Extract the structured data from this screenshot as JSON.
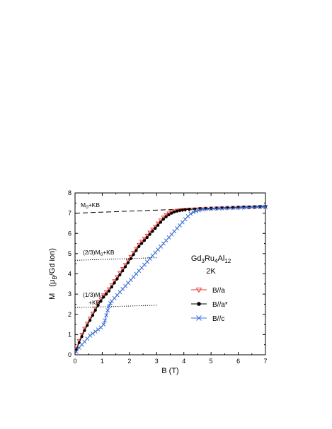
{
  "chart_data": {
    "type": "line",
    "xlabel": "B (T)",
    "ylabel_prefix": "M",
    "ylabel_unit_text": "B",
    "ylabel_suffix": "/Gd ion)",
    "xlim": [
      0,
      7
    ],
    "ylim": [
      0,
      8
    ],
    "xticks": [
      "0",
      "1",
      "2",
      "3",
      "4",
      "5",
      "6",
      "7"
    ],
    "yticks": [
      "0",
      "1",
      "2",
      "3",
      "4",
      "5",
      "6",
      "7",
      "8"
    ],
    "grid": false,
    "legend_position": "right-middle",
    "compound": {
      "Gd": "Gd",
      "n1": "3",
      "Ru": "Ru",
      "n2": "4",
      "Al": "Al",
      "n3": "12"
    },
    "temperature": "2K",
    "annotations": {
      "m0_main": "M",
      "m0_sub": "0",
      "m0_rest": "+KB",
      "two_thirds_pre": "(2/3)M",
      "two_thirds_sub": "0",
      "two_thirds_rest": "+KB",
      "one_third_pre": "(1/3)M",
      "one_third_sub": "0",
      "one_third_line2": "+KB"
    },
    "reference_lines": [
      {
        "style": "dashed",
        "x": [
          0,
          7
        ],
        "y": [
          7.0,
          7.35
        ]
      },
      {
        "style": "dotted",
        "x": [
          0,
          3
        ],
        "y": [
          4.67,
          4.8
        ]
      },
      {
        "style": "dotted",
        "x": [
          0,
          3
        ],
        "y": [
          2.33,
          2.45
        ]
      }
    ],
    "series": [
      {
        "name": "B//a",
        "color": "#e8352f",
        "marker": "triangle-down-open",
        "x": [
          0.05,
          0.15,
          0.25,
          0.35,
          0.45,
          0.55,
          0.65,
          0.75,
          0.85,
          0.95,
          1.05,
          1.15,
          1.25,
          1.35,
          1.45,
          1.55,
          1.65,
          1.75,
          1.85,
          1.95,
          2.05,
          2.15,
          2.25,
          2.35,
          2.45,
          2.55,
          2.65,
          2.75,
          2.85,
          2.95,
          3.05,
          3.15,
          3.25,
          3.35,
          3.45,
          3.55,
          3.65,
          3.75,
          3.85,
          3.95,
          4.05,
          4.2,
          4.4,
          4.6,
          4.8,
          5.0,
          5.2,
          5.4,
          5.6,
          5.8,
          6.0,
          6.2,
          6.4,
          6.6,
          6.8,
          7.0
        ],
        "y": [
          0.3,
          0.7,
          1.0,
          1.3,
          1.55,
          1.8,
          2.05,
          2.3,
          2.55,
          2.75,
          2.95,
          3.1,
          3.25,
          3.45,
          3.65,
          3.85,
          4.05,
          4.25,
          4.45,
          4.65,
          4.85,
          5.05,
          5.25,
          5.45,
          5.6,
          5.75,
          5.9,
          6.05,
          6.2,
          6.35,
          6.5,
          6.65,
          6.8,
          6.92,
          7.0,
          7.06,
          7.1,
          7.13,
          7.15,
          7.17,
          7.18,
          7.19,
          7.2,
          7.22,
          7.23,
          7.24,
          7.25,
          7.26,
          7.27,
          7.28,
          7.29,
          7.3,
          7.3,
          7.31,
          7.32,
          7.32
        ]
      },
      {
        "name": "B//a*",
        "color": "#000000",
        "marker": "circle-filled",
        "x": [
          0.05,
          0.15,
          0.25,
          0.35,
          0.45,
          0.55,
          0.65,
          0.75,
          0.85,
          0.95,
          1.05,
          1.15,
          1.25,
          1.35,
          1.45,
          1.55,
          1.65,
          1.75,
          1.85,
          1.95,
          2.05,
          2.15,
          2.25,
          2.35,
          2.45,
          2.55,
          2.65,
          2.75,
          2.85,
          2.95,
          3.05,
          3.15,
          3.25,
          3.35,
          3.45,
          3.55,
          3.65,
          3.75,
          3.85,
          3.95,
          4.05,
          4.2,
          4.4,
          4.6,
          4.8,
          5.0,
          5.2,
          5.4,
          5.6,
          5.8,
          6.0,
          6.2,
          6.4,
          6.6,
          6.8,
          7.0
        ],
        "y": [
          0.25,
          0.6,
          0.9,
          1.2,
          1.45,
          1.7,
          1.95,
          2.2,
          2.45,
          2.65,
          2.85,
          3.0,
          3.15,
          3.35,
          3.55,
          3.75,
          3.95,
          4.15,
          4.35,
          4.55,
          4.75,
          4.95,
          5.15,
          5.35,
          5.5,
          5.65,
          5.8,
          5.95,
          6.1,
          6.25,
          6.4,
          6.55,
          6.7,
          6.82,
          6.92,
          7.0,
          7.06,
          7.1,
          7.13,
          7.15,
          7.17,
          7.19,
          7.2,
          7.22,
          7.23,
          7.24,
          7.25,
          7.26,
          7.27,
          7.28,
          7.29,
          7.3,
          7.3,
          7.31,
          7.32,
          7.32
        ]
      },
      {
        "name": "B//c",
        "color": "#3a6fd8",
        "marker": "x",
        "x": [
          0.05,
          0.15,
          0.25,
          0.35,
          0.45,
          0.55,
          0.65,
          0.75,
          0.85,
          0.95,
          1.05,
          1.1,
          1.15,
          1.2,
          1.25,
          1.3,
          1.35,
          1.45,
          1.55,
          1.65,
          1.75,
          1.85,
          1.95,
          2.05,
          2.15,
          2.25,
          2.35,
          2.45,
          2.55,
          2.65,
          2.75,
          2.85,
          2.95,
          3.05,
          3.15,
          3.25,
          3.35,
          3.45,
          3.55,
          3.65,
          3.75,
          3.85,
          3.95,
          4.05,
          4.15,
          4.25,
          4.35,
          4.45,
          4.55,
          4.7,
          4.9,
          5.1,
          5.3,
          5.5,
          5.7,
          5.9,
          6.1,
          6.3,
          6.5,
          6.7,
          6.9,
          7.0
        ],
        "y": [
          0.15,
          0.35,
          0.5,
          0.65,
          0.8,
          0.95,
          1.05,
          1.15,
          1.25,
          1.35,
          1.5,
          1.7,
          1.95,
          2.2,
          2.4,
          2.55,
          2.65,
          2.8,
          2.95,
          3.1,
          3.25,
          3.4,
          3.55,
          3.7,
          3.85,
          4.0,
          4.15,
          4.3,
          4.45,
          4.6,
          4.75,
          4.9,
          5.05,
          5.2,
          5.35,
          5.5,
          5.65,
          5.8,
          5.95,
          6.1,
          6.25,
          6.4,
          6.55,
          6.7,
          6.85,
          6.97,
          7.05,
          7.1,
          7.14,
          7.18,
          7.2,
          7.22,
          7.23,
          7.24,
          7.25,
          7.26,
          7.27,
          7.28,
          7.29,
          7.3,
          7.31,
          7.31
        ]
      }
    ]
  }
}
